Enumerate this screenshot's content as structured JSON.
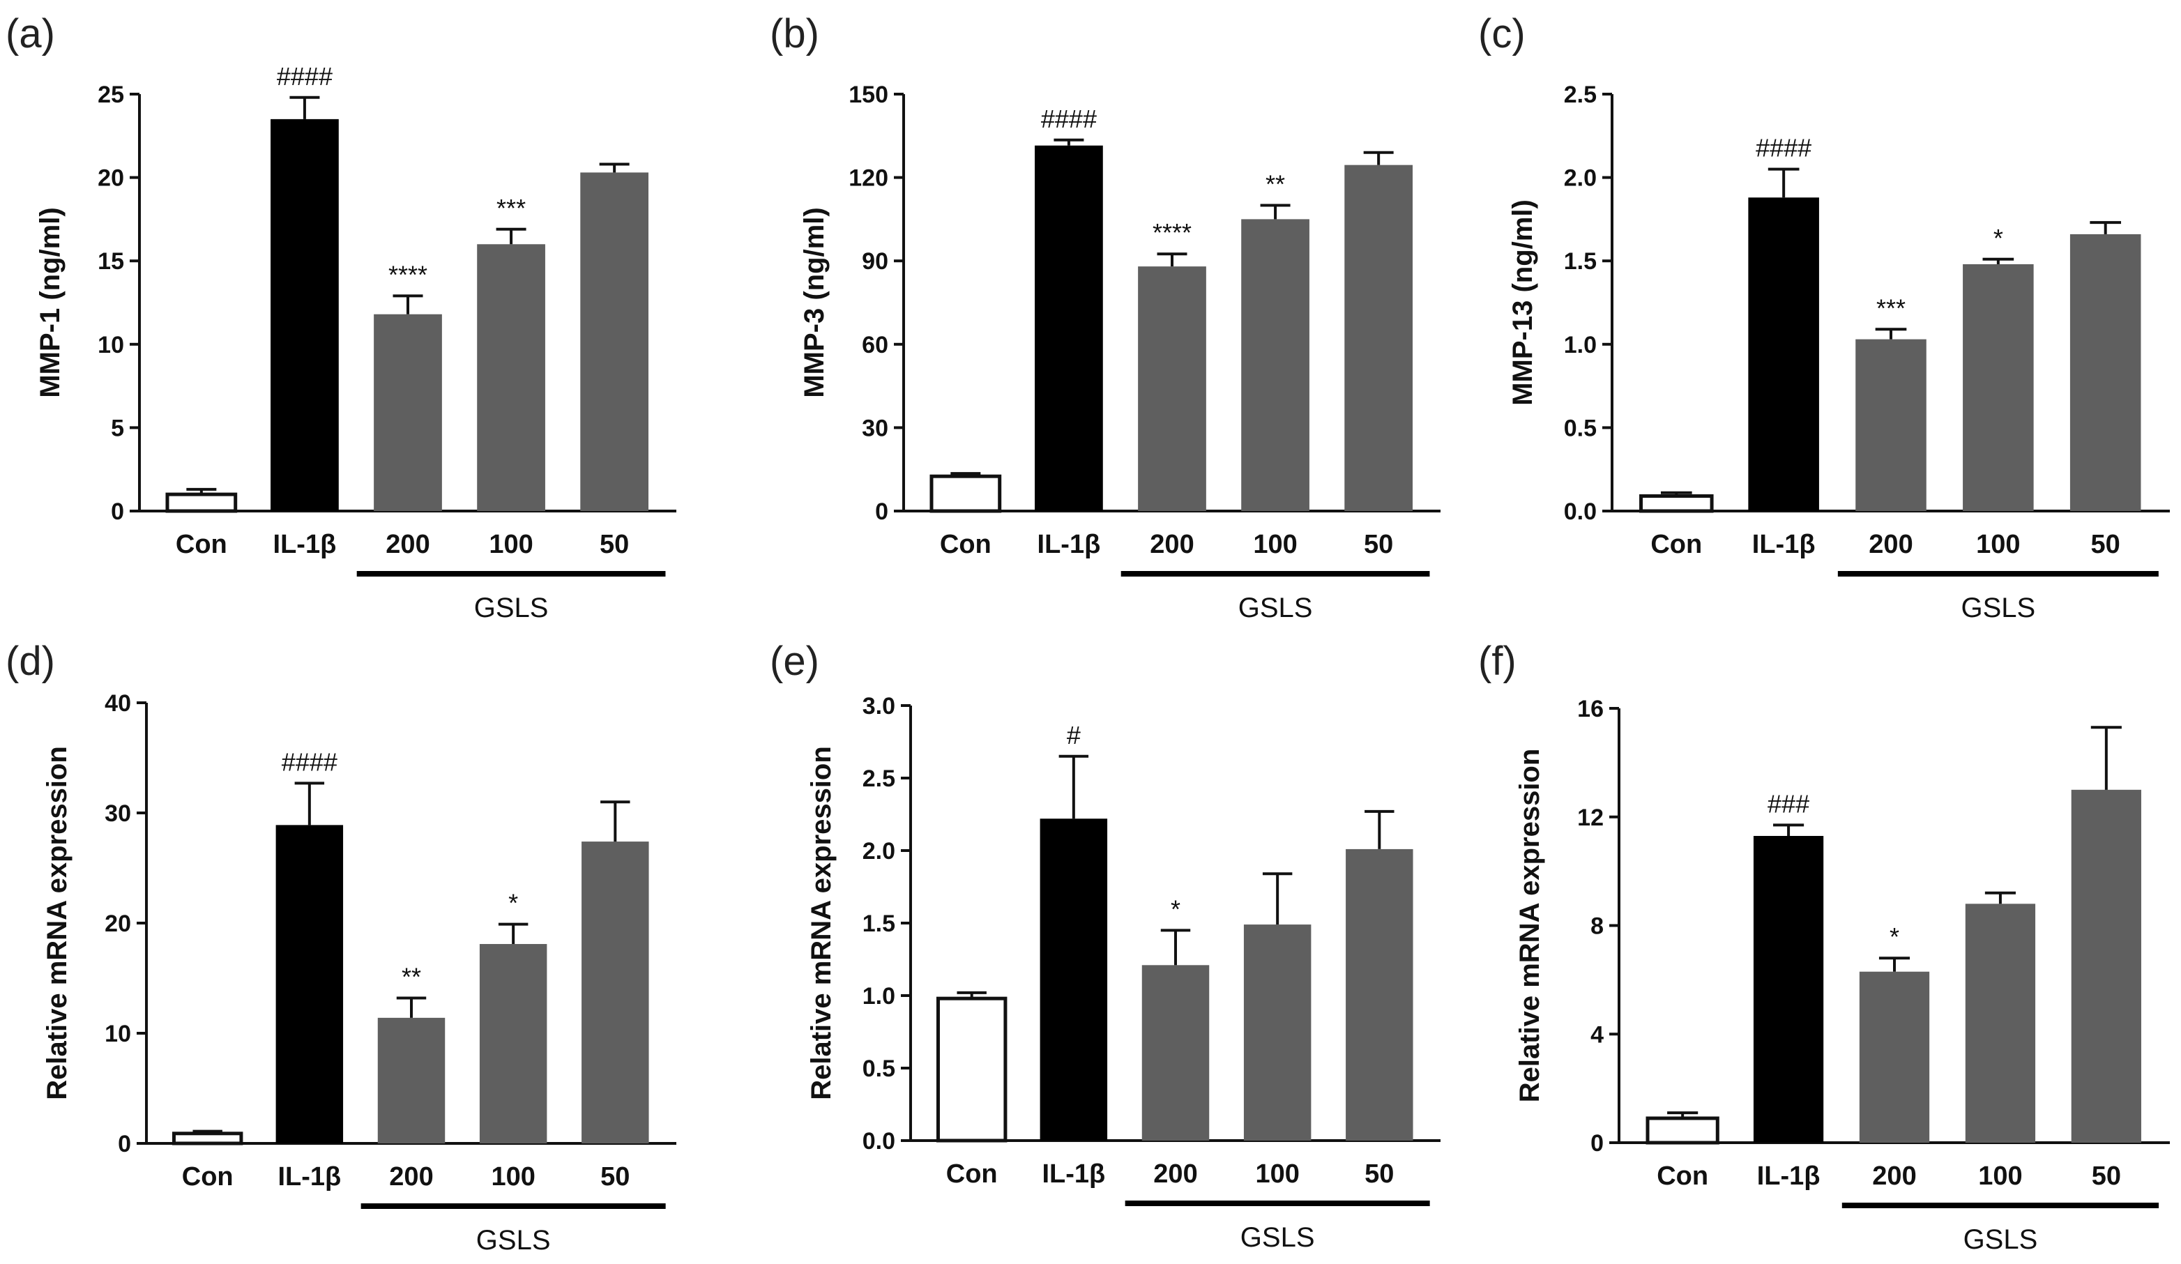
{
  "figure": {
    "group_label": "GSLS"
  },
  "colors": {
    "con": "#ffffff",
    "il1b": "#000000",
    "gsls": "#5f5f5f",
    "edge": "#111111"
  },
  "chart_data": [
    {
      "type": "bar",
      "label": "(a)",
      "title": "",
      "xlabel": "",
      "ylabel": "MMP-1 (ng/ml)",
      "ylim": [
        0,
        25
      ],
      "yticks": [
        "0",
        "5",
        "10",
        "15",
        "20",
        "25"
      ],
      "categories": [
        "Con",
        "IL-1β",
        "200",
        "100",
        "50"
      ],
      "values": [
        1.0,
        23.5,
        11.8,
        16.0,
        20.3
      ],
      "errors": [
        0.3,
        1.3,
        1.1,
        0.9,
        0.5
      ],
      "annotations": [
        "",
        "####",
        "****",
        "***",
        ""
      ],
      "group_label": "GSLS"
    },
    {
      "type": "bar",
      "label": "(b)",
      "title": "",
      "xlabel": "",
      "ylabel": "MMP-3 (ng/ml)",
      "ylim": [
        0,
        150
      ],
      "yticks": [
        "0",
        "30",
        "60",
        "90",
        "120",
        "150"
      ],
      "categories": [
        "Con",
        "IL-1β",
        "200",
        "100",
        "50"
      ],
      "values": [
        12.5,
        131.5,
        88.0,
        105.0,
        124.5
      ],
      "errors": [
        1.0,
        2.0,
        4.5,
        5.0,
        4.5
      ],
      "annotations": [
        "",
        "####",
        "****",
        "**",
        ""
      ],
      "group_label": "GSLS"
    },
    {
      "type": "bar",
      "label": "(c)",
      "title": "",
      "xlabel": "",
      "ylabel": "MMP-13 (ng/ml)",
      "ylim": [
        0,
        2.5
      ],
      "yticks": [
        "0.0",
        "0.5",
        "1.0",
        "1.5",
        "2.0",
        "2.5"
      ],
      "categories": [
        "Con",
        "IL-1β",
        "200",
        "100",
        "50"
      ],
      "values": [
        0.09,
        1.88,
        1.03,
        1.48,
        1.66
      ],
      "errors": [
        0.02,
        0.17,
        0.06,
        0.03,
        0.07
      ],
      "annotations": [
        "",
        "####",
        "***",
        "*",
        ""
      ],
      "group_label": "GSLS"
    },
    {
      "type": "bar",
      "label": "(d)",
      "title": "",
      "xlabel": "",
      "ylabel": "Relative mRNA expression",
      "ylim": [
        0,
        40
      ],
      "yticks": [
        "0",
        "10",
        "20",
        "30",
        "40"
      ],
      "categories": [
        "Con",
        "IL-1β",
        "200",
        "100",
        "50"
      ],
      "values": [
        0.9,
        28.9,
        11.4,
        18.1,
        27.4
      ],
      "errors": [
        0.2,
        3.8,
        1.8,
        1.8,
        3.6
      ],
      "annotations": [
        "",
        "####",
        "**",
        "*",
        ""
      ],
      "group_label": "GSLS"
    },
    {
      "type": "bar",
      "label": "(e)",
      "title": "",
      "xlabel": "",
      "ylabel": "Relative mRNA expression",
      "ylim": [
        0,
        3.0
      ],
      "yticks": [
        "0.0",
        "0.5",
        "1.0",
        "1.5",
        "2.0",
        "2.5",
        "3.0"
      ],
      "categories": [
        "Con",
        "IL-1β",
        "200",
        "100",
        "50"
      ],
      "values": [
        0.98,
        2.22,
        1.21,
        1.49,
        2.01
      ],
      "errors": [
        0.04,
        0.43,
        0.24,
        0.35,
        0.26
      ],
      "annotations": [
        "",
        "#",
        "*",
        "",
        ""
      ],
      "group_label": "GSLS"
    },
    {
      "type": "bar",
      "label": "(f)",
      "title": "",
      "xlabel": "",
      "ylabel": "Relative mRNA expression",
      "ylim": [
        0,
        16
      ],
      "yticks": [
        "0",
        "4",
        "8",
        "12",
        "16"
      ],
      "categories": [
        "Con",
        "IL-1β",
        "200",
        "100",
        "50"
      ],
      "values": [
        0.9,
        11.3,
        6.3,
        8.8,
        13.0
      ],
      "errors": [
        0.2,
        0.4,
        0.5,
        0.4,
        2.3
      ],
      "annotations": [
        "",
        "###",
        "*",
        "",
        ""
      ],
      "group_label": "GSLS"
    }
  ]
}
